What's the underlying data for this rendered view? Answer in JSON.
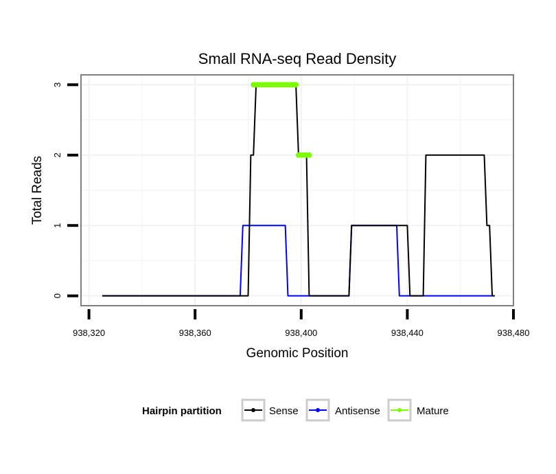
{
  "chart_data": {
    "type": "line",
    "title": "Small RNA-seq Read Density",
    "xlabel": "Genomic Position",
    "ylabel": "Total Reads",
    "xlim": [
      938317,
      938480
    ],
    "ylim": [
      -0.14,
      3.14
    ],
    "x_ticks": [
      938320,
      938360,
      938400,
      938440,
      938480
    ],
    "x_tick_labels": [
      "938,320",
      "938,360",
      "938,400",
      "938,440",
      "938,480"
    ],
    "y_ticks": [
      0,
      1,
      2,
      3
    ],
    "y_tick_labels": [
      "0",
      "1",
      "2",
      "3"
    ],
    "grid": true,
    "legend_position": "bottom",
    "legend_title": "Hairpin partition",
    "colors": {
      "Sense": "#000000",
      "Antisense": "#0000ff",
      "Mature": "#7cfc00",
      "panel_border": "#7f7f7f",
      "grid": "#f2f2f2"
    },
    "series": [
      {
        "name": "Sense",
        "points": [
          [
            938325,
            0
          ],
          [
            938380,
            0
          ],
          [
            938381,
            2
          ],
          [
            938382,
            2
          ],
          [
            938383,
            3
          ],
          [
            938397,
            3
          ],
          [
            938398,
            3
          ],
          [
            938399,
            2
          ],
          [
            938402,
            2
          ],
          [
            938403,
            0
          ],
          [
            938418,
            0
          ],
          [
            938419,
            1
          ],
          [
            938440,
            1
          ],
          [
            938441,
            0
          ],
          [
            938446,
            0
          ],
          [
            938447,
            2
          ],
          [
            938469,
            2
          ],
          [
            938470,
            1
          ],
          [
            938471,
            1
          ],
          [
            938472,
            0
          ],
          [
            938473,
            0
          ]
        ]
      },
      {
        "name": "Antisense",
        "points": [
          [
            938325,
            0
          ],
          [
            938377,
            0
          ],
          [
            938378,
            1
          ],
          [
            938394,
            1
          ],
          [
            938395,
            0
          ],
          [
            938418,
            0
          ],
          [
            938419,
            1
          ],
          [
            938436,
            1
          ],
          [
            938437,
            0
          ],
          [
            938472,
            0
          ]
        ]
      },
      {
        "name": "Mature",
        "segments": [
          {
            "x": [
              938382,
              938398
            ],
            "y": 3
          },
          {
            "x": [
              938399,
              938403
            ],
            "y": 2
          }
        ]
      }
    ]
  }
}
